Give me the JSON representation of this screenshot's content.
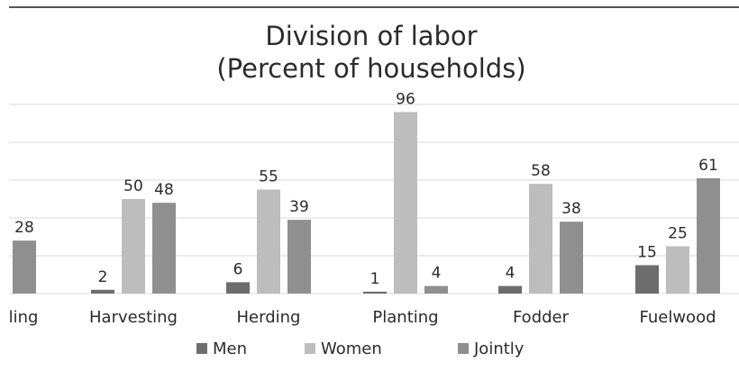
{
  "chart_data": {
    "type": "bar",
    "title": [
      "Division of labor",
      "(Percent of households)"
    ],
    "categories": [
      "ling",
      "Harvesting",
      "Herding",
      "Planting",
      "Fodder",
      "Fuelwood"
    ],
    "series": [
      {
        "name": "Men",
        "color": "#6d6d6d",
        "values": [
          null,
          2,
          6,
          1,
          4,
          15
        ]
      },
      {
        "name": "Women",
        "color": "#bdbdbd",
        "values": [
          null,
          50,
          55,
          96,
          58,
          25
        ]
      },
      {
        "name": "Jointly",
        "color": "#8f8f8f",
        "values": [
          28,
          48,
          39,
          4,
          38,
          61
        ]
      }
    ],
    "ylim": [
      0,
      100
    ],
    "gridlines": true,
    "legend_position": "bottom"
  }
}
